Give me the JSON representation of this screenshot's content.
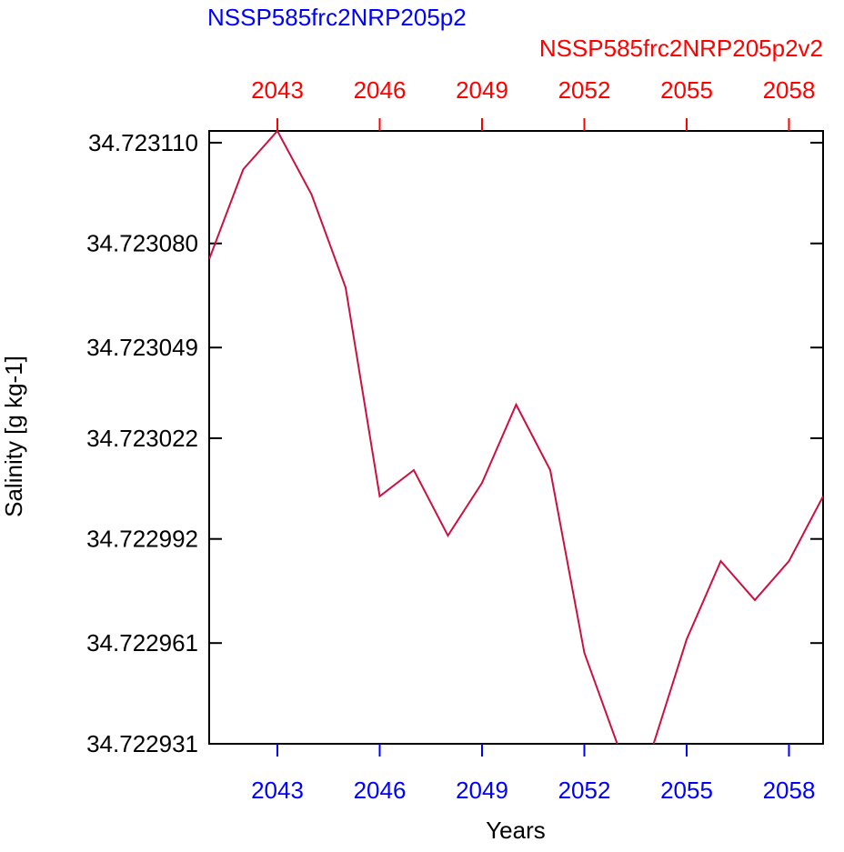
{
  "chart_data": {
    "type": "line",
    "title": "NSSP585frc2NRP205p2",
    "title_color": "#0000ff",
    "subtitle": "NSSP585frc2NRP205p2v2",
    "subtitle_color": "#ff0000",
    "x_label": "Years",
    "y_label": "Salinity [g kg-1]",
    "x": [
      2041,
      2042,
      2043,
      2044,
      2045,
      2046,
      2047,
      2048,
      2049,
      2050,
      2051,
      2052,
      2053,
      2054,
      2055,
      2056,
      2057,
      2058,
      2059
    ],
    "series": [
      {
        "name": "NSSP585frc2NRP205p2v2",
        "color": "#cc1040",
        "values": [
          34.7230753,
          34.7231021,
          34.7231135,
          34.7230946,
          34.7230669,
          34.7230047,
          34.7230125,
          34.722993,
          34.7230087,
          34.723032,
          34.7230125,
          34.7229581,
          34.72293,
          34.72293,
          34.7229621,
          34.7229854,
          34.7229738,
          34.7229854,
          34.7230047
        ]
      }
    ],
    "xlim": [
      2041,
      2059
    ],
    "xticks": [
      2043,
      2046,
      2049,
      2052,
      2055,
      2058
    ],
    "bottom_tick_color": "#0000ff",
    "top_tick_color": "#ff0000",
    "ylim": [
      34.722931,
      34.7231135
    ],
    "yticks": [
      {
        "value": 34.722931,
        "label": "34.722931"
      },
      {
        "value": 34.722961,
        "label": "34.722961"
      },
      {
        "value": 34.722992,
        "label": "34.722992"
      },
      {
        "value": 34.723022,
        "label": "34.723022"
      },
      {
        "value": 34.723049,
        "label": "34.723049"
      },
      {
        "value": 34.72308,
        "label": "34.723080"
      },
      {
        "value": 34.72311,
        "label": "34.723110"
      }
    ],
    "grid": false
  }
}
